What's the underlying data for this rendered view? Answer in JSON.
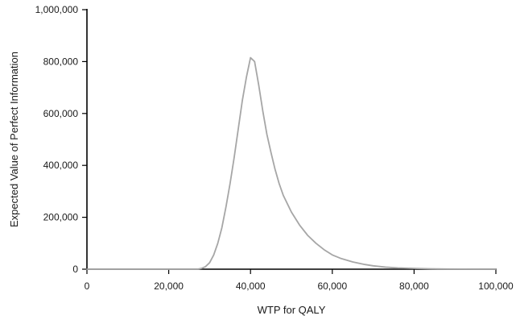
{
  "chart_data": {
    "type": "line",
    "title": "",
    "xlabel": "WTP for QALY",
    "ylabel": "Expected Value of Perfect Information",
    "xlim": [
      0,
      100000
    ],
    "ylim": [
      0,
      1000000
    ],
    "x_ticks": [
      "0",
      "20,000",
      "40,000",
      "60,000",
      "80,000",
      "100,000"
    ],
    "y_ticks": [
      "0",
      "200,000",
      "400,000",
      "600,000",
      "800,000",
      "1,000,000"
    ],
    "grid": false,
    "legend": "none",
    "series": [
      {
        "color": "#a6a6a6",
        "x": [
          0,
          5000,
          10000,
          15000,
          20000,
          25000,
          27000,
          28000,
          29000,
          30000,
          31000,
          32000,
          33000,
          34000,
          35000,
          36000,
          37000,
          38000,
          39000,
          40000,
          41000,
          42000,
          43000,
          44000,
          45000,
          46000,
          47000,
          48000,
          50000,
          52000,
          54000,
          56000,
          58000,
          60000,
          62000,
          65000,
          68000,
          70000,
          73000,
          76000,
          80000,
          84000,
          88000,
          92000,
          96000,
          100000
        ],
        "y": [
          0,
          0,
          0,
          0,
          0,
          0,
          0,
          3000,
          10000,
          25000,
          55000,
          100000,
          160000,
          240000,
          330000,
          430000,
          540000,
          650000,
          740000,
          815000,
          800000,
          710000,
          610000,
          520000,
          450000,
          385000,
          330000,
          285000,
          220000,
          170000,
          130000,
          100000,
          75000,
          55000,
          42000,
          28000,
          18000,
          13000,
          8000,
          5000,
          3000,
          1500,
          800,
          300,
          100,
          0
        ]
      }
    ]
  }
}
